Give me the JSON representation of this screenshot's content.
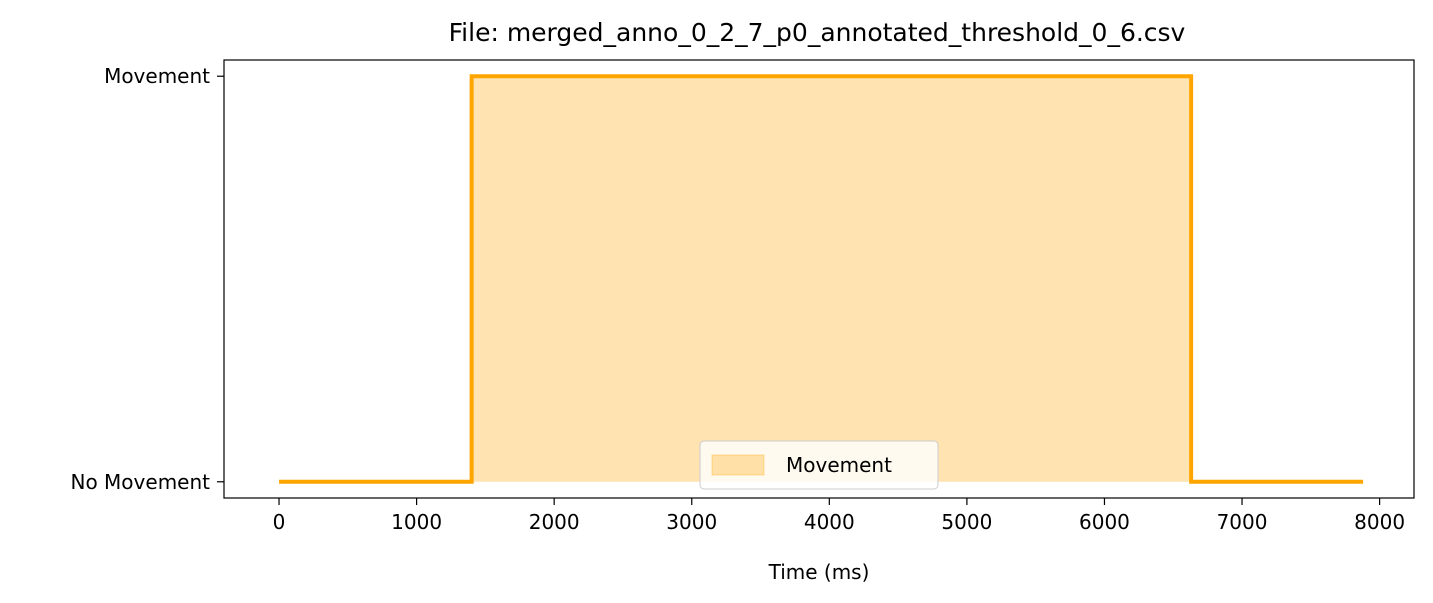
{
  "chart_data": {
    "type": "line",
    "title": "File: merged_anno_0_2_7_p0_annotated_threshold_0_6.csv",
    "xlabel": "Time (ms)",
    "ylabel": "",
    "xlim": [
      -400,
      8250
    ],
    "ylim": [
      -0.04,
      1.04
    ],
    "x_ticks": [
      0,
      1000,
      2000,
      3000,
      4000,
      5000,
      6000,
      7000,
      8000
    ],
    "x_tick_labels": [
      "0",
      "1000",
      "2000",
      "3000",
      "4000",
      "5000",
      "6000",
      "7000",
      "8000"
    ],
    "y_ticks": [
      0,
      1
    ],
    "y_tick_labels": [
      "No Movement",
      "Movement"
    ],
    "grid": false,
    "legend": {
      "placement": "lower center",
      "entries": [
        "Movement"
      ]
    },
    "series": [
      {
        "style": "step",
        "color": "#FFA500",
        "x": [
          0,
          1400,
          1400,
          6630,
          6630,
          7880
        ],
        "y": [
          0,
          0,
          1,
          1,
          0,
          0
        ]
      }
    ],
    "fill": {
      "name": "Movement",
      "color": "#FFA500",
      "opacity": 0.3,
      "x_start": 1400,
      "x_end": 6630,
      "y_low": 0,
      "y_high": 1
    }
  }
}
